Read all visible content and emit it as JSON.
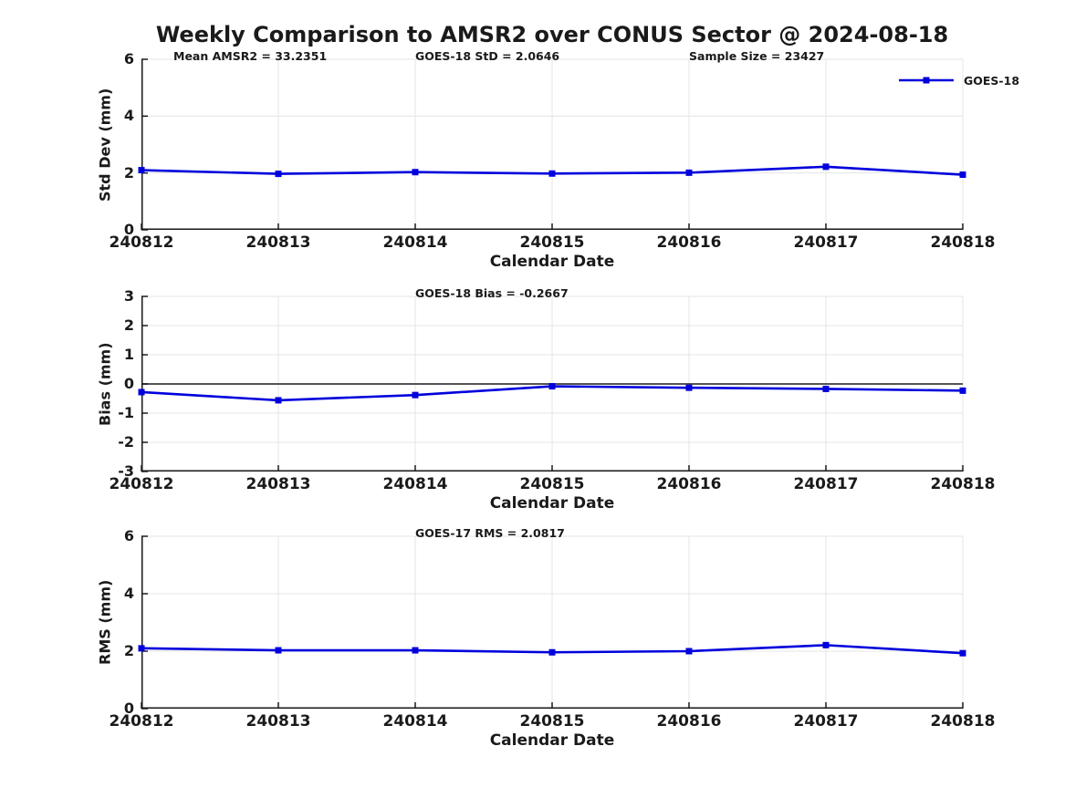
{
  "page": {
    "title": "Weekly Comparison to AMSR2 over CONUS Sector @ 2024-08-18"
  },
  "legend": {
    "label": "GOES-18",
    "position": "top-right"
  },
  "colors": {
    "series_line": "#0000DD",
    "grid_line": "#E4E4E4",
    "zero_line": "#3C3C3C",
    "axis_spine": "#1A1A1A",
    "text": "#1A1A1A"
  },
  "chart_data": [
    {
      "type": "line",
      "title": "",
      "annotations": [
        "Mean AMSR2 = 33.2351",
        "GOES-18 StD = 2.0646",
        "Sample Size = 23427"
      ],
      "xlabel": "Calendar Date",
      "ylabel": "Std Dev (mm)",
      "ylim": [
        0,
        6
      ],
      "yticks": [
        0,
        2,
        4,
        6
      ],
      "grid": true,
      "zero_line": false,
      "categories": [
        "240812",
        "240813",
        "240814",
        "240815",
        "240816",
        "240817",
        "240818"
      ],
      "series": [
        {
          "name": "GOES-18",
          "marker": "square",
          "values": [
            2.1,
            1.97,
            2.03,
            1.98,
            2.01,
            2.22,
            1.94
          ]
        }
      ]
    },
    {
      "type": "line",
      "title": "",
      "annotations": [
        "GOES-18 Bias  = -0.2667"
      ],
      "xlabel": "Calendar Date",
      "ylabel": "Bias (mm)",
      "ylim": [
        -3,
        3
      ],
      "yticks": [
        3,
        2,
        1,
        0,
        -1,
        -2,
        -3
      ],
      "grid": true,
      "zero_line": true,
      "categories": [
        "240812",
        "240813",
        "240814",
        "240815",
        "240816",
        "240817",
        "240818"
      ],
      "series": [
        {
          "name": "GOES-18",
          "marker": "square",
          "values": [
            -0.28,
            -0.56,
            -0.38,
            -0.08,
            -0.13,
            -0.17,
            -0.23
          ]
        }
      ]
    },
    {
      "type": "line",
      "title": "",
      "annotations": [
        "GOES-17 RMS = 2.0817"
      ],
      "xlabel": "Calendar Date",
      "ylabel": "RMS (mm)",
      "ylim": [
        0,
        6
      ],
      "yticks": [
        0,
        2,
        4,
        6
      ],
      "grid": true,
      "zero_line": false,
      "categories": [
        "240812",
        "240813",
        "240814",
        "240815",
        "240816",
        "240817",
        "240818"
      ],
      "series": [
        {
          "name": "GOES-18",
          "marker": "square",
          "values": [
            2.1,
            2.03,
            2.03,
            1.96,
            2.0,
            2.21,
            1.93
          ]
        }
      ]
    }
  ]
}
